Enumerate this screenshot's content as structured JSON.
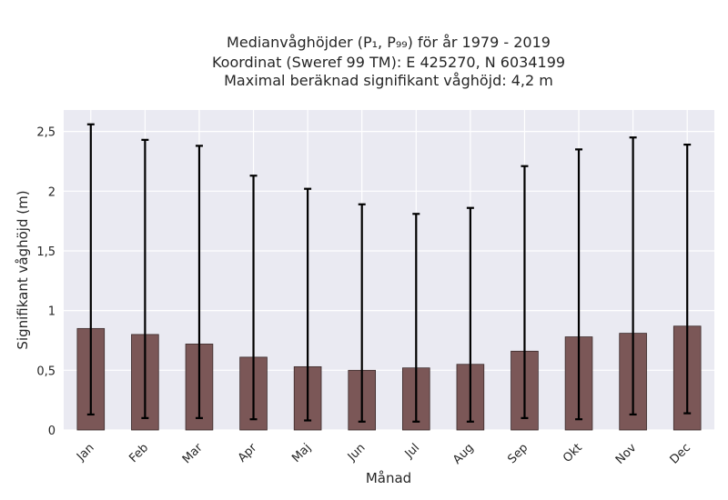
{
  "chart_data": {
    "type": "bar",
    "title_lines": [
      "Medianvåghöjder (P₁, P₉₉) för år 1979 - 2019",
      "Koordinat (Sweref 99 TM): E 425270, N 6034199",
      "Maximal beräknad signifikant våghöjd: 4,2 m"
    ],
    "xlabel": "Månad",
    "ylabel": "Signifikant våghöjd (m)",
    "categories": [
      "Jan",
      "Feb",
      "Mar",
      "Apr",
      "Maj",
      "Jun",
      "Jul",
      "Aug",
      "Sep",
      "Okt",
      "Nov",
      "Dec"
    ],
    "values": [
      0.85,
      0.8,
      0.72,
      0.61,
      0.53,
      0.5,
      0.52,
      0.55,
      0.66,
      0.78,
      0.81,
      0.87
    ],
    "p1": [
      0.13,
      0.1,
      0.1,
      0.09,
      0.08,
      0.07,
      0.07,
      0.07,
      0.1,
      0.09,
      0.13,
      0.14
    ],
    "p99": [
      2.56,
      2.43,
      2.38,
      2.13,
      2.02,
      1.89,
      1.81,
      1.86,
      2.21,
      2.35,
      2.45,
      2.39
    ],
    "ylim": [
      0,
      2.68
    ],
    "yticks": [
      0,
      0.5,
      1,
      1.5,
      2,
      2.5
    ],
    "ytick_labels": [
      "0",
      "0,5",
      "1",
      "1,5",
      "2",
      "2,5"
    ],
    "grid": true,
    "colors": {
      "bar": "#7b5757",
      "bar_edge": "#3a2a2a",
      "errorbar": "#000000",
      "plot_background": "#eaeaf2",
      "grid": "#ffffff"
    }
  }
}
